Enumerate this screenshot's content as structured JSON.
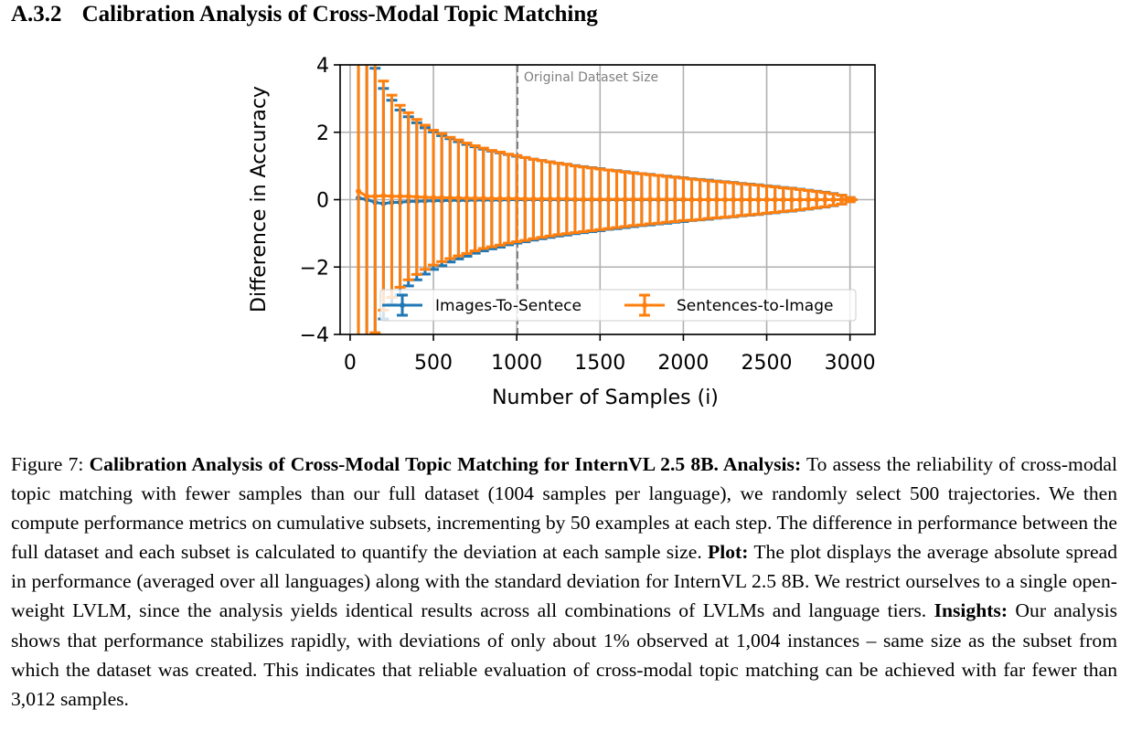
{
  "section": {
    "number": "A.3.2",
    "title": "Calibration Analysis of Cross-Modal Topic Matching"
  },
  "chart_data": {
    "type": "line",
    "subtype": "errorbar",
    "xlabel": "Number of Samples (i)",
    "ylabel": "Difference in Accuracy",
    "xlim": [
      -60,
      3150
    ],
    "ylim": [
      -4,
      4
    ],
    "xticks": [
      0,
      500,
      1000,
      1500,
      2000,
      2500,
      3000
    ],
    "xtick_labels": [
      "0",
      "500",
      "1000",
      "1500",
      "2000",
      "2500",
      "3000"
    ],
    "yticks": [
      -4,
      -2,
      0,
      2,
      4
    ],
    "ytick_labels": [
      "−4",
      "−2",
      "0",
      "2",
      "4"
    ],
    "grid": true,
    "legend_position": "lower-right",
    "vline": {
      "x": 1004,
      "label": "Original Dataset Size",
      "color": "#808080",
      "style": "dashed"
    },
    "x": [
      50,
      100,
      150,
      200,
      250,
      300,
      350,
      400,
      450,
      500,
      550,
      600,
      650,
      700,
      750,
      800,
      850,
      900,
      950,
      1000,
      1050,
      1100,
      1150,
      1200,
      1250,
      1300,
      1350,
      1400,
      1450,
      1500,
      1550,
      1600,
      1650,
      1700,
      1750,
      1800,
      1850,
      1900,
      1950,
      2000,
      2050,
      2100,
      2150,
      2200,
      2250,
      2300,
      2350,
      2400,
      2450,
      2500,
      2550,
      2600,
      2650,
      2700,
      2750,
      2800,
      2850,
      2900,
      2950,
      3000,
      3012
    ],
    "series": [
      {
        "name": "Images-To-Sentece",
        "color": "#1f77b4",
        "y": [
          0.05,
          0.0,
          -0.08,
          -0.12,
          -0.08,
          -0.08,
          -0.05,
          -0.05,
          -0.04,
          -0.03,
          -0.03,
          -0.02,
          -0.02,
          -0.02,
          -0.01,
          -0.01,
          -0.01,
          -0.01,
          0.0,
          0.0,
          0.0,
          0.0,
          0.0,
          0.0,
          0.0,
          0.0,
          0.0,
          0.0,
          0.0,
          0.0,
          0.0,
          0.0,
          0.0,
          0.0,
          0.0,
          0.0,
          0.0,
          0.0,
          0.0,
          0.0,
          0.0,
          0.0,
          0.0,
          0.0,
          0.0,
          0.0,
          0.0,
          0.0,
          0.0,
          0.0,
          0.0,
          0.0,
          0.0,
          0.0,
          0.0,
          0.0,
          0.0,
          0.0,
          0.0,
          0.0,
          0.0
        ],
        "err": [
          7.01,
          4.92,
          3.98,
          3.42,
          3.03,
          2.74,
          2.51,
          2.33,
          2.17,
          2.04,
          1.93,
          1.83,
          1.74,
          1.66,
          1.58,
          1.51,
          1.45,
          1.4,
          1.34,
          1.29,
          1.25,
          1.2,
          1.16,
          1.12,
          1.08,
          1.05,
          1.01,
          0.98,
          0.95,
          0.92,
          0.88,
          0.86,
          0.83,
          0.8,
          0.77,
          0.75,
          0.72,
          0.7,
          0.67,
          0.65,
          0.62,
          0.6,
          0.58,
          0.55,
          0.53,
          0.51,
          0.48,
          0.46,
          0.44,
          0.41,
          0.39,
          0.36,
          0.34,
          0.31,
          0.28,
          0.25,
          0.22,
          0.18,
          0.13,
          0.06,
          0.0
        ]
      },
      {
        "name": "Sentences-to-Image",
        "color": "#ff7f0e",
        "y": [
          0.25,
          0.1,
          0.1,
          0.12,
          0.1,
          0.1,
          0.1,
          0.08,
          0.07,
          0.06,
          0.06,
          0.05,
          0.05,
          0.04,
          0.04,
          0.04,
          0.03,
          0.03,
          0.03,
          0.03,
          0.02,
          0.02,
          0.02,
          0.02,
          0.02,
          0.02,
          0.01,
          0.01,
          0.01,
          0.01,
          0.01,
          0.01,
          0.01,
          0.01,
          0.01,
          0.01,
          0.01,
          0.01,
          0.01,
          0.01,
          0.0,
          0.0,
          0.0,
          0.0,
          0.0,
          0.0,
          0.0,
          0.0,
          0.0,
          0.0,
          0.0,
          0.0,
          0.0,
          0.0,
          0.0,
          0.0,
          0.0,
          0.0,
          0.0,
          0.0,
          0.0
        ],
        "err": [
          7.2,
          5.0,
          4.05,
          3.4,
          3.0,
          2.7,
          2.48,
          2.3,
          2.14,
          2.0,
          1.9,
          1.8,
          1.72,
          1.64,
          1.56,
          1.49,
          1.43,
          1.38,
          1.32,
          1.28,
          1.23,
          1.18,
          1.14,
          1.1,
          1.06,
          1.03,
          0.99,
          0.96,
          0.93,
          0.9,
          0.87,
          0.84,
          0.81,
          0.78,
          0.76,
          0.73,
          0.71,
          0.68,
          0.66,
          0.63,
          0.61,
          0.59,
          0.56,
          0.54,
          0.52,
          0.5,
          0.47,
          0.45,
          0.43,
          0.4,
          0.38,
          0.35,
          0.33,
          0.3,
          0.27,
          0.24,
          0.21,
          0.17,
          0.13,
          0.06,
          0.0
        ]
      }
    ]
  },
  "caption": {
    "fig": "Figure 7: ",
    "title_bold": "Calibration Analysis of Cross-Modal Topic Matching for InternVL 2.5 8B. Analysis:",
    "analysis": " To assess the reliability of cross-modal topic matching with fewer samples than our full dataset (1004 samples per language), we randomly select 500 trajectories. We then compute performance metrics on cumulative subsets, incrementing by 50 examples at each step. The difference in performance between the full dataset and each subset is calculated to quantify the deviation at each sample size. ",
    "plot_bold": "Plot:",
    "plot": " The plot displays the average absolute spread in performance (averaged over all languages) along with the standard deviation for InternVL 2.5 8B. We restrict ourselves to a single open-weight LVLM, since the analysis yields identical results across all combinations of LVLMs and language tiers. ",
    "insights_bold": "Insights:",
    "insights": " Our analysis shows that performance stabilizes rapidly, with deviations of only about 1% observed at 1,004 instances – same size as the subset from which the dataset was created. This indicates that reliable evaluation of cross-modal topic matching can be achieved with far fewer than 3,012 samples."
  }
}
